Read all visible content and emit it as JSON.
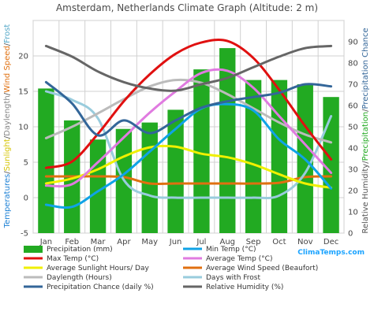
{
  "chart_data": {
    "type": "bar",
    "title": "Amsterdam, Netherlands Climate Graph (Altitude: 2 m)",
    "categories": [
      "Jan",
      "Feb",
      "Mar",
      "Apr",
      "May",
      "Jun",
      "Jul",
      "Aug",
      "Sep",
      "Oct",
      "Nov",
      "Dec"
    ],
    "ylim_left": [
      -5,
      25
    ],
    "ylim_right": [
      0,
      100
    ],
    "left_ticks": [
      "-5",
      "0",
      "5",
      "10",
      "15",
      "20"
    ],
    "right_ticks": [
      "0",
      "10",
      "20",
      "30",
      "40",
      "50",
      "60",
      "70",
      "80",
      "90"
    ],
    "left_axis_label": {
      "part1": "Temperatures",
      "sep1": "/",
      "part2": "Sunlight",
      "sep2": "/",
      "part3": "Daylength",
      "sep3": "/",
      "part4": "Wind Speed",
      "sep4": "/",
      "part5": "Frost"
    },
    "right_axis_label": {
      "part1": "Relative Humidity",
      "sep1": "/",
      "part2": "Precipitation",
      "sep2": "/",
      "part3": "Precipitation Chance"
    },
    "bars": {
      "name": "Precipitation (mm)",
      "color": "#22aa22",
      "values": [
        68,
        53,
        44,
        49,
        52,
        58,
        77,
        87,
        72,
        72,
        70,
        64
      ]
    },
    "series": [
      {
        "name": "Min Temp (°C)",
        "color": "#0fa3e6",
        "axis": "left",
        "values": [
          -1.0,
          -1.3,
          0.9,
          3.3,
          6.5,
          9.7,
          12.6,
          13.2,
          12.3,
          8.2,
          5.4,
          1.3
        ]
      },
      {
        "name": "Max Temp (°C)",
        "color": "#e01010",
        "axis": "left",
        "values": [
          4.2,
          5.1,
          9.0,
          13.6,
          17.4,
          20.3,
          21.9,
          22.1,
          19.7,
          15.2,
          10.1,
          5.4
        ]
      },
      {
        "name": "Average Temp (°C)",
        "color": "#e07be0",
        "axis": "left",
        "values": [
          1.7,
          1.9,
          5.0,
          8.5,
          12.0,
          15.0,
          17.6,
          17.9,
          15.5,
          11.5,
          7.5,
          3.5
        ]
      },
      {
        "name": "Average Sunlight Hours/ Day",
        "color": "#f0f000",
        "axis": "left",
        "values": [
          2.0,
          2.7,
          4.0,
          5.8,
          7.1,
          7.2,
          6.2,
          5.7,
          4.7,
          3.3,
          2.0,
          1.4
        ]
      },
      {
        "name": "Average Wind Speed (Beaufort)",
        "color": "#e07010",
        "axis": "left",
        "values": [
          3.0,
          3.0,
          3.0,
          2.9,
          2.0,
          2.0,
          2.0,
          2.0,
          2.0,
          2.1,
          2.9,
          3.0
        ]
      },
      {
        "name": "Daylength (Hours)",
        "color": "#bbbbbb",
        "axis": "left",
        "values": [
          8.4,
          10.0,
          11.9,
          13.9,
          15.7,
          16.6,
          16.2,
          14.6,
          12.6,
          10.6,
          8.9,
          7.8
        ]
      },
      {
        "name": "Days with Frost",
        "color": "#99ccdd",
        "axis": "left",
        "values": [
          15.0,
          13.8,
          11.2,
          2.5,
          0.3,
          0.0,
          0.0,
          0.0,
          0.0,
          0.3,
          3.5,
          11.5
        ]
      },
      {
        "name": "Precipitation Chance (daily %)",
        "color": "#336699",
        "axis": "right",
        "values": [
          71,
          61,
          46,
          53,
          47,
          53,
          59,
          62,
          64,
          66,
          70,
          69
        ]
      },
      {
        "name": "Relative Humidity (%)",
        "color": "#666666",
        "axis": "right",
        "values": [
          88,
          83,
          76,
          71,
          68,
          67,
          70,
          73,
          78,
          83,
          87,
          88
        ]
      }
    ],
    "legend_placement": "bottom",
    "grid": true,
    "brand": "ClimaTemps.com"
  }
}
